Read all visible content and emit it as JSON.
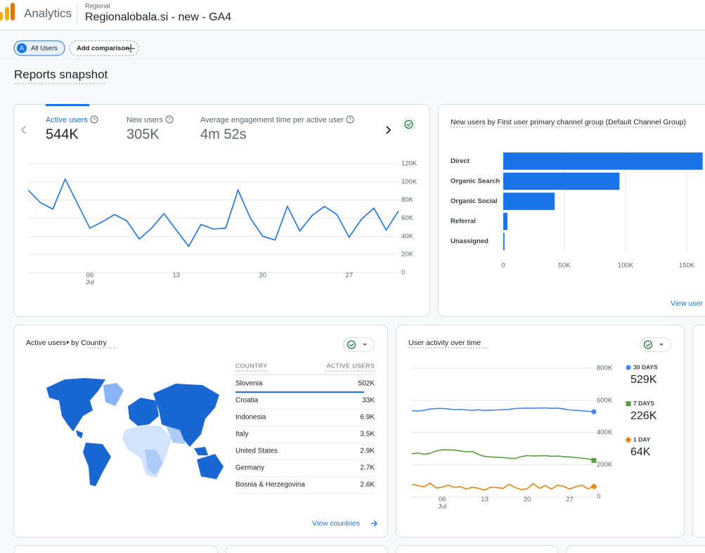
{
  "header": {
    "app_name": "Analytics",
    "property_group": "Regional",
    "property_name": "Regionalobala.si - new - GA4"
  },
  "toolbar": {
    "segment_badge": "A",
    "segment": "All Users",
    "add_comparison": "Add comparison"
  },
  "page_title": "Reports snapshot",
  "overview": {
    "metrics": [
      {
        "label": "Active users",
        "value": "544K"
      },
      {
        "label": "New users",
        "value": "305K"
      },
      {
        "label": "Average engagement time per active user",
        "value": "4m 52s"
      }
    ],
    "chart": {
      "type": "line",
      "color": "#1a73e8",
      "grid": true,
      "categories": [
        null,
        null,
        null,
        null,
        null,
        "06",
        null,
        null,
        null,
        null,
        null,
        null,
        "13",
        null,
        null,
        null,
        null,
        null,
        null,
        "20",
        null,
        null,
        null,
        null,
        null,
        null,
        "27",
        null,
        null,
        null,
        null
      ],
      "x_month": "Jul",
      "values": [
        91000,
        77000,
        70000,
        103000,
        76000,
        49000,
        56000,
        64000,
        57000,
        37000,
        49000,
        65000,
        47000,
        29000,
        53000,
        48000,
        49000,
        91000,
        60000,
        40000,
        36000,
        73000,
        46000,
        63000,
        73000,
        64000,
        39000,
        59000,
        71000,
        47000,
        68000
      ],
      "ylim": [
        0,
        120000
      ],
      "yticks": [
        0,
        {
          "value": 20000,
          "label": "20K"
        },
        {
          "value": 40000,
          "label": "40K"
        },
        {
          "value": 60000,
          "label": "60K"
        },
        {
          "value": 80000,
          "label": "80K"
        },
        {
          "value": 100000,
          "label": "100K"
        },
        {
          "value": 120000,
          "label": "120K"
        }
      ]
    }
  },
  "acquisition": {
    "title_metric": "New users",
    "title_by": "by",
    "title_dimension": "First user primary channel group (Default Channel Group)",
    "chart": {
      "type": "bar",
      "orientation": "horizontal",
      "color": "#1a73e8",
      "grid": true,
      "categories": [
        "Direct",
        "Organic Search",
        "Organic Social",
        "Referral",
        "Unassigned"
      ],
      "values": [
        163000,
        95000,
        42000,
        3400,
        1000
      ],
      "xlim": [
        0,
        200000
      ],
      "xticks": [
        0,
        {
          "value": 50000,
          "label": "50K"
        },
        {
          "value": 100000,
          "label": "100K"
        },
        {
          "value": 150000,
          "label": "150K"
        }
      ]
    },
    "link": "View user"
  },
  "countries": {
    "title_metric": "Active users",
    "title_by": "by",
    "title_dimension": "Country",
    "columns": [
      "COUNTRY",
      "ACTIVE USERS"
    ],
    "rows": [
      [
        "Slovenia",
        "502K"
      ],
      [
        "Croatia",
        "33K"
      ],
      [
        "Indonesia",
        "6.9K"
      ],
      [
        "Italy",
        "3.5K"
      ],
      [
        "United States",
        "2.9K"
      ],
      [
        "Germany",
        "2.7K"
      ],
      [
        "Bosnia & Herzegovina",
        "2.6K"
      ]
    ],
    "link": "View countries"
  },
  "user_activity": {
    "title": "User activity over time",
    "chart": {
      "type": "line",
      "categories": [
        null,
        null,
        null,
        null,
        null,
        "06",
        null,
        null,
        null,
        null,
        null,
        null,
        "13",
        null,
        null,
        null,
        null,
        null,
        null,
        "20",
        null,
        null,
        null,
        null,
        null,
        null,
        "27",
        null,
        null,
        null,
        null
      ],
      "x_month": "Jul",
      "ylim": [
        0,
        800000
      ],
      "yticks": [
        0,
        {
          "value": 200000,
          "label": "200K"
        },
        {
          "value": 400000,
          "label": "400K"
        },
        {
          "value": 600000,
          "label": "600K"
        },
        {
          "value": 800000,
          "label": "800K"
        }
      ],
      "series": [
        {
          "name": "30 DAYS",
          "color": "#4285f4",
          "marker": "circle",
          "latest_label": "529K",
          "values": [
            535000,
            534000,
            538000,
            546000,
            549000,
            550000,
            546000,
            542000,
            544000,
            540000,
            538000,
            541000,
            537000,
            539000,
            540000,
            542000,
            544000,
            549000,
            551000,
            552000,
            551000,
            552000,
            553000,
            550000,
            552000,
            546000,
            540000,
            538000,
            535000,
            532000,
            529000
          ]
        },
        {
          "name": "7 DAYS",
          "color": "#5b9e3f",
          "marker": "square",
          "latest_label": "226K",
          "values": [
            268000,
            272000,
            264000,
            270000,
            285000,
            292000,
            292000,
            291000,
            285000,
            280000,
            282000,
            262000,
            252000,
            248000,
            246000,
            244000,
            240000,
            238000,
            250000,
            256000,
            254000,
            255000,
            256000,
            252000,
            254000,
            250000,
            248000,
            244000,
            240000,
            236000,
            226000
          ]
        },
        {
          "name": "1 DAY",
          "color": "#e8830f",
          "marker": "diamond",
          "latest_label": "64K",
          "values": [
            78000,
            70000,
            62000,
            85000,
            55000,
            60000,
            72000,
            58000,
            63000,
            48000,
            60000,
            52000,
            42000,
            60000,
            58000,
            52000,
            78000,
            58000,
            45000,
            50000,
            82000,
            53000,
            70000,
            47000,
            72000,
            65000,
            48000,
            62000,
            72000,
            50000,
            64000
          ]
        }
      ]
    }
  }
}
